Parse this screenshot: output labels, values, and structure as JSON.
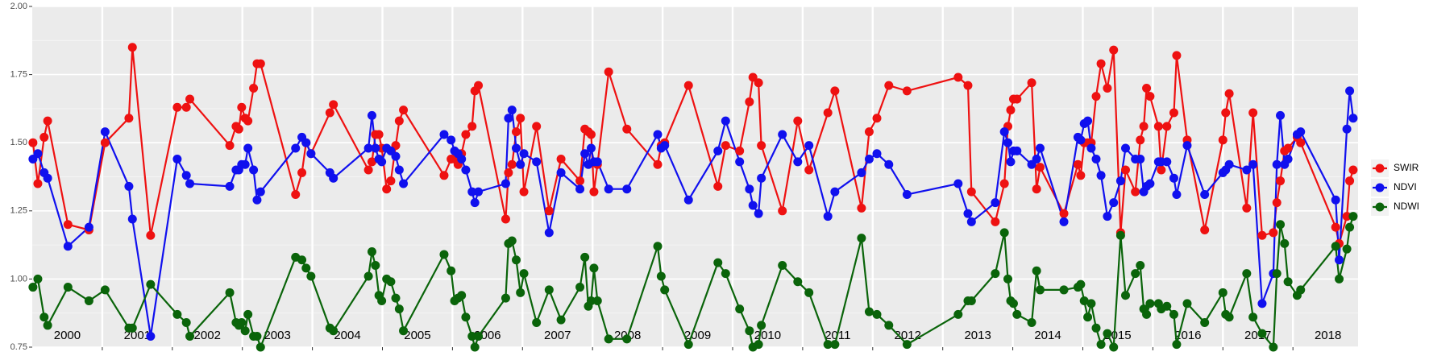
{
  "chart_data": {
    "type": "line",
    "x": [
      2000.01,
      2000.08,
      2000.17,
      2000.22,
      2000.51,
      2000.81,
      2001.04,
      2001.38,
      2001.43,
      2001.69,
      2002.07,
      2002.2,
      2002.25,
      2002.82,
      2002.91,
      2002.95,
      2002.99,
      2003.04,
      2003.08,
      2003.16,
      2003.21,
      2003.26,
      2003.76,
      2003.85,
      2003.91,
      2003.98,
      2004.25,
      2004.3,
      2004.8,
      2004.85,
      2004.9,
      2004.95,
      2004.99,
      2005.06,
      2005.12,
      2005.19,
      2005.24,
      2005.3,
      2005.88,
      2005.98,
      2006.03,
      2006.08,
      2006.13,
      2006.19,
      2006.28,
      2006.32,
      2006.37,
      2006.76,
      2006.8,
      2006.85,
      2006.91,
      2006.97,
      2007.02,
      2007.2,
      2007.38,
      2007.55,
      2007.82,
      2007.89,
      2007.94,
      2007.98,
      2008.02,
      2008.07,
      2008.23,
      2008.49,
      2008.93,
      2008.98,
      2009.03,
      2009.37,
      2009.79,
      2009.9,
      2010.1,
      2010.24,
      2010.29,
      2010.37,
      2010.41,
      2010.71,
      2010.93,
      2011.09,
      2011.36,
      2011.46,
      2011.84,
      2011.95,
      2012.06,
      2012.23,
      2012.49,
      2013.22,
      2013.36,
      2013.41,
      2013.75,
      2013.88,
      2013.93,
      2013.97,
      2014.01,
      2014.06,
      2014.27,
      2014.34,
      2014.39,
      2014.73,
      2014.93,
      2014.97,
      2015.02,
      2015.07,
      2015.12,
      2015.19,
      2015.26,
      2015.35,
      2015.44,
      2015.54,
      2015.61,
      2015.75,
      2015.82,
      2015.87,
      2015.91,
      2015.96,
      2016.08,
      2016.12,
      2016.2,
      2016.3,
      2016.34,
      2016.49,
      2016.74,
      2017.0,
      2017.04,
      2017.09,
      2017.34,
      2017.43,
      2017.56,
      2017.72,
      2017.77,
      2017.82,
      2017.88,
      2017.93,
      2018.06,
      2018.11,
      2018.61,
      2018.66,
      2018.77,
      2018.81,
      2018.86
    ],
    "series": [
      {
        "name": "SWIR",
        "color": "#ee1111",
        "values": [
          1.5,
          1.35,
          1.52,
          1.58,
          1.2,
          1.18,
          1.5,
          1.59,
          1.85,
          1.16,
          1.63,
          1.63,
          1.66,
          1.49,
          1.56,
          1.55,
          1.63,
          1.59,
          1.58,
          1.7,
          1.79,
          1.79,
          1.31,
          1.39,
          1.5,
          1.46,
          1.61,
          1.64,
          1.4,
          1.43,
          1.53,
          1.53,
          1.48,
          1.33,
          1.36,
          1.49,
          1.58,
          1.62,
          1.38,
          1.44,
          1.44,
          1.42,
          1.46,
          1.53,
          1.56,
          1.69,
          1.71,
          1.22,
          1.39,
          1.42,
          1.54,
          1.59,
          1.32,
          1.56,
          1.25,
          1.44,
          1.36,
          1.55,
          1.54,
          1.53,
          1.32,
          1.42,
          1.76,
          1.55,
          1.42,
          1.49,
          1.5,
          1.71,
          1.34,
          1.49,
          1.47,
          1.65,
          1.74,
          1.72,
          1.49,
          1.25,
          1.58,
          1.4,
          1.61,
          1.69,
          1.26,
          1.54,
          1.59,
          1.71,
          1.69,
          1.74,
          1.71,
          1.32,
          1.21,
          1.35,
          1.56,
          1.62,
          1.66,
          1.66,
          1.72,
          1.33,
          1.41,
          1.24,
          1.42,
          1.38,
          1.5,
          1.5,
          1.5,
          1.67,
          1.79,
          1.7,
          1.84,
          1.17,
          1.4,
          1.32,
          1.51,
          1.56,
          1.7,
          1.67,
          1.56,
          1.4,
          1.56,
          1.61,
          1.82,
          1.51,
          1.18,
          1.51,
          1.61,
          1.68,
          1.26,
          1.61,
          1.16,
          1.17,
          1.28,
          1.36,
          1.47,
          1.48,
          1.52,
          1.5,
          1.19,
          1.13,
          1.23,
          1.36,
          1.4
        ]
      },
      {
        "name": "NDVI",
        "color": "#1010ee",
        "values": [
          1.44,
          1.46,
          1.39,
          1.37,
          1.12,
          1.19,
          1.54,
          1.34,
          1.22,
          0.79,
          1.44,
          1.38,
          1.35,
          1.34,
          1.4,
          1.4,
          1.42,
          1.42,
          1.48,
          1.4,
          1.29,
          1.32,
          1.48,
          1.52,
          1.5,
          1.46,
          1.39,
          1.37,
          1.48,
          1.6,
          1.48,
          1.44,
          1.43,
          1.48,
          1.47,
          1.45,
          1.4,
          1.35,
          1.53,
          1.51,
          1.47,
          1.46,
          1.44,
          1.4,
          1.32,
          1.28,
          1.32,
          1.35,
          1.59,
          1.62,
          1.48,
          1.42,
          1.46,
          1.43,
          1.17,
          1.39,
          1.33,
          1.46,
          1.42,
          1.48,
          1.43,
          1.43,
          1.33,
          1.33,
          1.53,
          1.48,
          1.49,
          1.29,
          1.47,
          1.58,
          1.43,
          1.33,
          1.27,
          1.24,
          1.37,
          1.53,
          1.43,
          1.49,
          1.23,
          1.32,
          1.39,
          1.44,
          1.46,
          1.42,
          1.31,
          1.35,
          1.24,
          1.21,
          1.28,
          1.54,
          1.5,
          1.43,
          1.47,
          1.47,
          1.42,
          1.44,
          1.48,
          1.21,
          1.52,
          1.51,
          1.57,
          1.58,
          1.48,
          1.44,
          1.38,
          1.23,
          1.28,
          1.36,
          1.48,
          1.44,
          1.44,
          1.32,
          1.34,
          1.35,
          1.43,
          1.43,
          1.43,
          1.37,
          1.31,
          1.49,
          1.31,
          1.39,
          1.4,
          1.42,
          1.4,
          1.42,
          0.91,
          1.02,
          1.42,
          1.6,
          1.42,
          1.44,
          1.53,
          1.54,
          1.29,
          1.07,
          1.55,
          1.69,
          1.59
        ]
      },
      {
        "name": "NDWI",
        "color": "#0a640a",
        "values": [
          0.97,
          1.0,
          0.86,
          0.83,
          0.97,
          0.92,
          0.96,
          0.82,
          0.82,
          0.98,
          0.87,
          0.84,
          0.79,
          0.95,
          0.84,
          0.83,
          0.84,
          0.81,
          0.87,
          0.79,
          0.79,
          0.75,
          1.08,
          1.07,
          1.04,
          1.01,
          0.82,
          0.81,
          1.01,
          1.1,
          1.05,
          0.94,
          0.92,
          1.0,
          0.99,
          0.93,
          0.89,
          0.81,
          1.09,
          1.03,
          0.92,
          0.93,
          0.94,
          0.86,
          0.79,
          0.75,
          0.79,
          0.93,
          1.13,
          1.14,
          1.07,
          0.95,
          1.02,
          0.84,
          0.96,
          0.85,
          0.97,
          1.08,
          0.9,
          0.92,
          1.04,
          0.92,
          0.78,
          0.78,
          1.12,
          1.01,
          0.96,
          0.76,
          1.06,
          1.02,
          0.89,
          0.81,
          0.75,
          0.76,
          0.83,
          1.05,
          0.99,
          0.95,
          0.76,
          0.76,
          1.15,
          0.88,
          0.87,
          0.83,
          0.76,
          0.87,
          0.92,
          0.92,
          1.02,
          1.17,
          1.0,
          0.92,
          0.91,
          0.87,
          0.84,
          1.03,
          0.96,
          0.96,
          0.97,
          0.98,
          0.92,
          0.86,
          0.91,
          0.82,
          0.76,
          0.8,
          0.75,
          1.16,
          0.94,
          1.02,
          1.05,
          0.89,
          0.87,
          0.91,
          0.91,
          0.89,
          0.9,
          0.87,
          0.76,
          0.91,
          0.84,
          0.95,
          0.87,
          0.86,
          1.02,
          0.86,
          0.8,
          0.75,
          1.02,
          1.2,
          1.13,
          0.99,
          0.94,
          0.96,
          1.12,
          1.0,
          1.11,
          1.19,
          1.23
        ]
      }
    ],
    "xlim": [
      2000,
      2018.93
    ],
    "xticks": [
      2001,
      2002,
      2003,
      2004,
      2005,
      2006,
      2007,
      2008,
      2009,
      2010,
      2011,
      2012,
      2013,
      2014,
      2015,
      2016,
      2017,
      2018
    ],
    "ylim": [
      0.75,
      2.0
    ],
    "yticks": [
      {
        "value": 0.75,
        "label": "0.75"
      },
      {
        "value": 1.0,
        "label": "1.00"
      },
      {
        "value": 1.25,
        "label": "1.25"
      },
      {
        "value": 1.5,
        "label": "1.50"
      },
      {
        "value": 1.75,
        "label": "1.75"
      },
      {
        "value": 2.0,
        "label": "2.00"
      }
    ],
    "grid": true,
    "minor_grid": true,
    "legend": "right",
    "annotations": [
      {
        "x": 2000.5,
        "text": "2000"
      },
      {
        "x": 2001.5,
        "text": "2001"
      },
      {
        "x": 2002.5,
        "text": "2002"
      },
      {
        "x": 2003.5,
        "text": "2003"
      },
      {
        "x": 2004.5,
        "text": "2004"
      },
      {
        "x": 2005.5,
        "text": "2005"
      },
      {
        "x": 2006.5,
        "text": "2006"
      },
      {
        "x": 2007.5,
        "text": "2007"
      },
      {
        "x": 2008.5,
        "text": "2008"
      },
      {
        "x": 2009.5,
        "text": "2009"
      },
      {
        "x": 2010.5,
        "text": "2010"
      },
      {
        "x": 2011.5,
        "text": "2011"
      },
      {
        "x": 2012.5,
        "text": "2012"
      },
      {
        "x": 2013.5,
        "text": "2013"
      },
      {
        "x": 2014.5,
        "text": "2014"
      },
      {
        "x": 2015.5,
        "text": "2015"
      },
      {
        "x": 2016.5,
        "text": "2016"
      },
      {
        "x": 2017.5,
        "text": "2017"
      },
      {
        "x": 2018.5,
        "text": "2018"
      }
    ]
  }
}
